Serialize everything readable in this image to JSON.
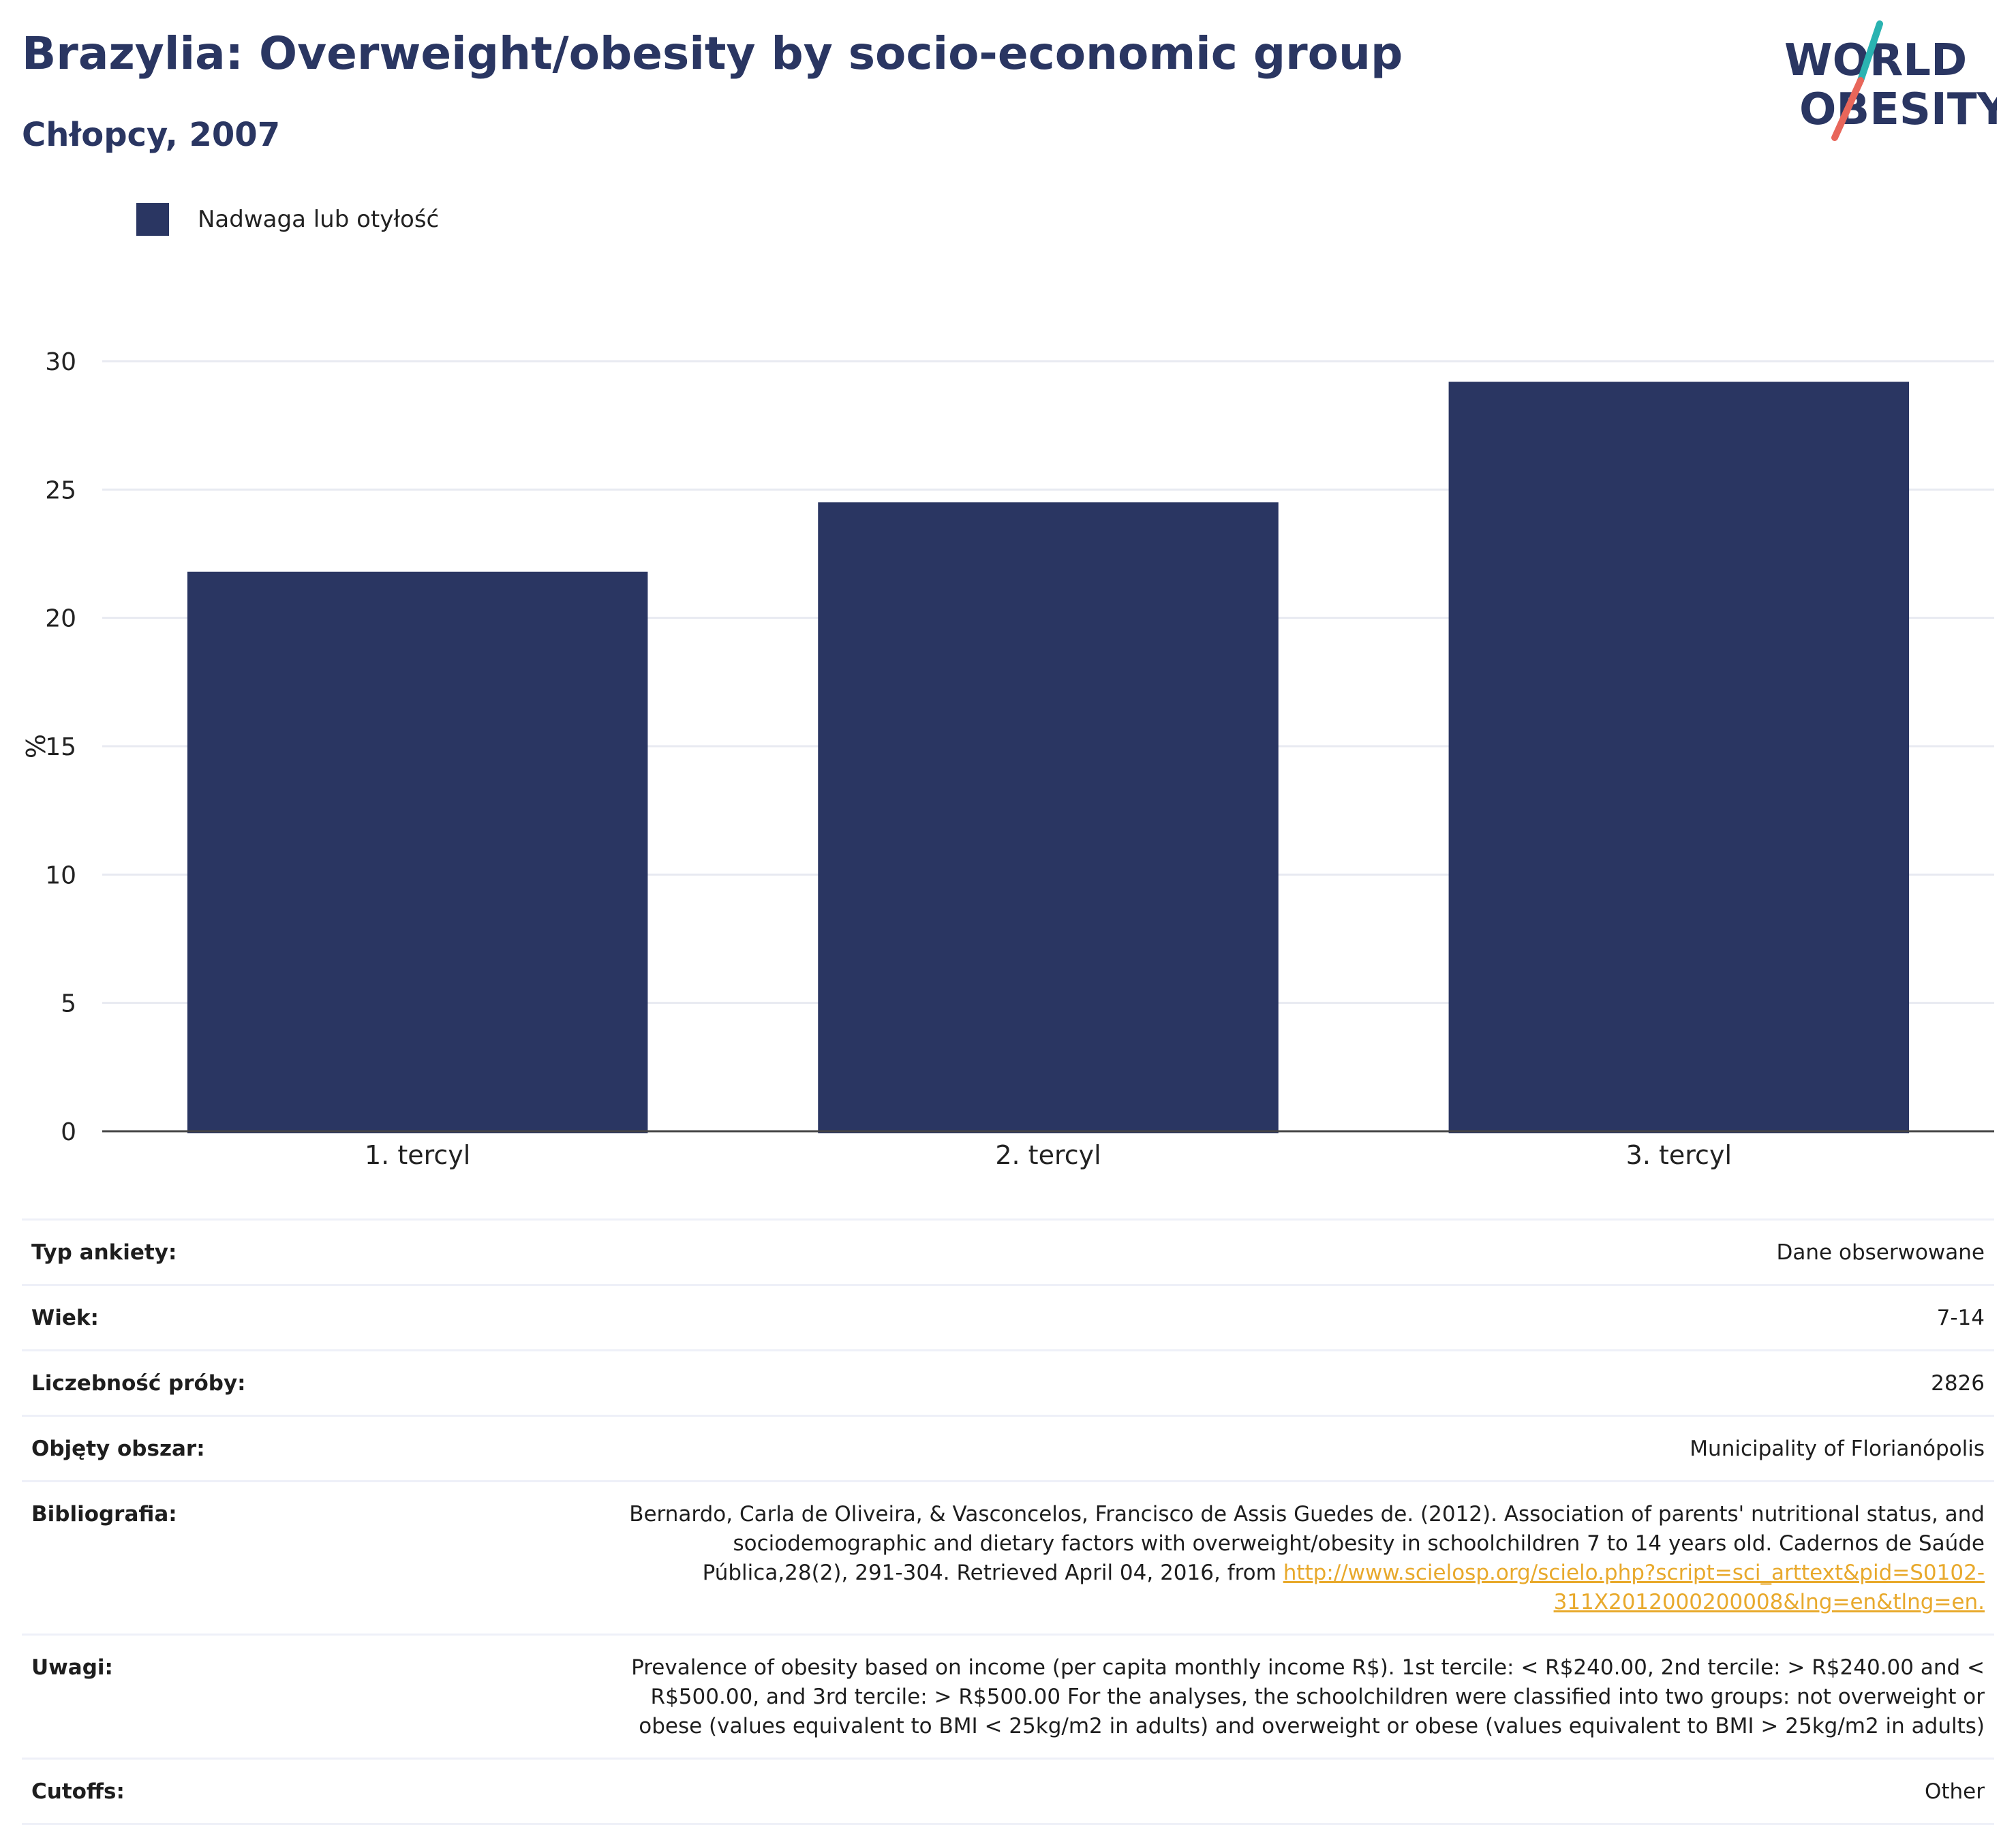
{
  "header": {
    "title": "Brazylia: Overweight/obesity by socio-economic group",
    "subtitle": "Chłopcy, 2007"
  },
  "logo": {
    "line1": "WORLD",
    "line2": "OBESITY",
    "accent_colors": [
      "#2ab3b1",
      "#e8665a"
    ]
  },
  "legend": {
    "label": "Nadwaga lub otyłość",
    "color": "#2a3662"
  },
  "chart_data": {
    "type": "bar",
    "categories": [
      "1. tercyl",
      "2. tercyl",
      "3. tercyl"
    ],
    "series": [
      {
        "name": "Nadwaga lub otyłość",
        "values": [
          21.8,
          24.5,
          29.2
        ],
        "color": "#2a3662"
      }
    ],
    "ylabel": "%",
    "ylim": [
      0,
      30
    ],
    "yticks": [
      0,
      5,
      10,
      15,
      20,
      25,
      30
    ],
    "grid": true,
    "legend_position": "top-left"
  },
  "info": {
    "survey_type": {
      "label": "Typ ankiety:",
      "value": "Dane obserwowane"
    },
    "age": {
      "label": "Wiek:",
      "value": "7-14"
    },
    "sample_size": {
      "label": "Liczebność próby:",
      "value": "2826"
    },
    "area": {
      "label": "Objęty obszar:",
      "value": "Municipality of Florianópolis"
    },
    "bibliography": {
      "label": "Bibliografia:",
      "text": "Bernardo, Carla de Oliveira, & Vasconcelos, Francisco de Assis Guedes de. (2012). Association of parents' nutritional status, and sociodemographic and dietary factors with overweight/obesity in schoolchildren 7 to 14 years old. Cadernos de Saúde Pública,28(2), 291-304. Retrieved April 04, 2016, from ",
      "link": "http://www.scielosp.org/scielo.php?script=sci_arttext&pid=S0102-311X2012000200008&lng=en&tlng=en."
    },
    "notes": {
      "label": "Uwagi:",
      "value": "Prevalence of obesity based on income (per capita monthly income R$). 1st tercile: < R$240.00, 2nd tercile: > R$240.00 and < R$500.00, and 3rd tercile: > R$500.00 For the analyses, the schoolchildren were classified into two groups: not overweight or obese (values equivalent to BMI < 25kg/m2 in adults) and overweight or obese (values equivalent to BMI > 25kg/m2 in adults)"
    },
    "cutoffs": {
      "label": "Cutoffs:",
      "value": "Other"
    }
  }
}
